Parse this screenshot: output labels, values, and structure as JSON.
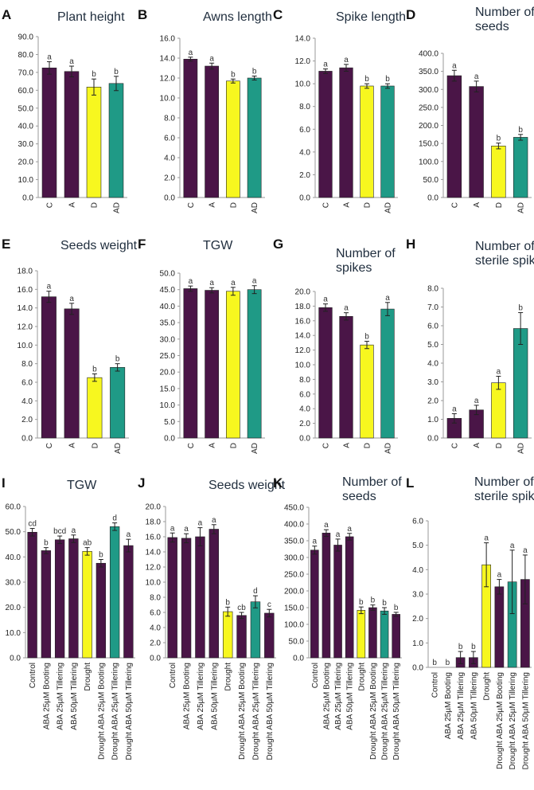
{
  "colors": {
    "control": "#4a1547",
    "drought": "#f7f71f",
    "ad": "#1f9a86"
  },
  "chart_data": [
    {
      "id": "A",
      "letter": "A",
      "title_lines": [
        "Plant height"
      ],
      "type": "bar",
      "categories": [
        "C",
        "A",
        "D",
        "AD"
      ],
      "values": [
        72.5,
        70.5,
        61.8,
        63.8
      ],
      "errors": [
        3.5,
        3.0,
        4.5,
        4.0
      ],
      "letters": [
        "a",
        "a",
        "b",
        "b"
      ],
      "colors": [
        "control",
        "control",
        "drought",
        "ad"
      ],
      "ylim": [
        0,
        90
      ],
      "yticks": [
        "0.0",
        "10.0",
        "20.0",
        "30.0",
        "40.0",
        "50.0",
        "60.0",
        "70.0",
        "80.0",
        "90.0"
      ]
    },
    {
      "id": "B",
      "letter": "B",
      "title_lines": [
        "Awns length"
      ],
      "type": "bar",
      "categories": [
        "C",
        "A",
        "D",
        "AD"
      ],
      "values": [
        13.9,
        13.2,
        11.7,
        12.0
      ],
      "errors": [
        0.2,
        0.3,
        0.2,
        0.2
      ],
      "letters": [
        "a",
        "a",
        "b",
        "b"
      ],
      "colors": [
        "control",
        "control",
        "drought",
        "ad"
      ],
      "ylim": [
        0,
        16
      ],
      "yticks": [
        "0.0",
        "2.0",
        "4.0",
        "6.0",
        "8.0",
        "10.0",
        "12.0",
        "14.0",
        "16.0"
      ]
    },
    {
      "id": "C",
      "letter": "C",
      "title_lines": [
        "Spike length"
      ],
      "type": "bar",
      "categories": [
        "C",
        "A",
        "D",
        "AD"
      ],
      "values": [
        11.1,
        11.4,
        9.8,
        9.8
      ],
      "errors": [
        0.2,
        0.3,
        0.2,
        0.2
      ],
      "letters": [
        "a",
        "a",
        "b",
        "b"
      ],
      "colors": [
        "control",
        "control",
        "drought",
        "ad"
      ],
      "ylim": [
        0,
        14
      ],
      "yticks": [
        "0.0",
        "2.0",
        "4.0",
        "6.0",
        "8.0",
        "10.0",
        "12.0",
        "14.0"
      ]
    },
    {
      "id": "D",
      "letter": "D",
      "title_lines": [
        "Number of",
        "seeds"
      ],
      "type": "bar",
      "categories": [
        "C",
        "A",
        "D",
        "AD"
      ],
      "values": [
        338,
        308,
        143,
        167
      ],
      "errors": [
        15,
        15,
        8,
        8
      ],
      "letters": [
        "a",
        "a",
        "b",
        "b"
      ],
      "colors": [
        "control",
        "control",
        "drought",
        "ad"
      ],
      "ylim": [
        0,
        400
      ],
      "yticks": [
        "0.0",
        "50.0",
        "100.0",
        "150.0",
        "200.0",
        "250.0",
        "300.0",
        "350.0",
        "400.0"
      ]
    },
    {
      "id": "E",
      "letter": "E",
      "title_lines": [
        "Seeds weight"
      ],
      "type": "bar",
      "categories": [
        "C",
        "A",
        "D",
        "AD"
      ],
      "values": [
        15.2,
        13.9,
        6.5,
        7.6
      ],
      "errors": [
        0.6,
        0.6,
        0.4,
        0.4
      ],
      "letters": [
        "a",
        "a",
        "b",
        "b"
      ],
      "colors": [
        "control",
        "control",
        "drought",
        "ad"
      ],
      "ylim": [
        0,
        18
      ],
      "yticks": [
        "0.0",
        "2.0",
        "4.0",
        "6.0",
        "8.0",
        "10.0",
        "12.0",
        "14.0",
        "16.0",
        "18.0"
      ]
    },
    {
      "id": "F",
      "letter": "F",
      "title_lines": [
        "TGW"
      ],
      "type": "bar",
      "categories": [
        "C",
        "A",
        "D",
        "AD"
      ],
      "values": [
        45.3,
        44.8,
        44.5,
        45.0
      ],
      "errors": [
        0.8,
        0.8,
        1.2,
        1.2
      ],
      "letters": [
        "a",
        "a",
        "a",
        "a"
      ],
      "colors": [
        "control",
        "control",
        "drought",
        "ad"
      ],
      "ylim": [
        0,
        50
      ],
      "yticks": [
        "0.0",
        "5.0",
        "10.0",
        "15.0",
        "20.0",
        "25.0",
        "30.0",
        "35.0",
        "40.0",
        "45.0",
        "50.0"
      ]
    },
    {
      "id": "G",
      "letter": "G",
      "title_lines": [
        "Number of",
        "spikes"
      ],
      "type": "bar",
      "categories": [
        "C",
        "A",
        "D",
        "AD"
      ],
      "values": [
        17.8,
        16.6,
        12.7,
        17.6
      ],
      "errors": [
        0.5,
        0.5,
        0.5,
        0.9
      ],
      "letters": [
        "a",
        "a",
        "b",
        "a"
      ],
      "colors": [
        "control",
        "control",
        "drought",
        "ad"
      ],
      "ylim": [
        0,
        20
      ],
      "yticks": [
        "0.0",
        "2.0",
        "4.0",
        "6.0",
        "8.0",
        "10.0",
        "12.0",
        "14.0",
        "16.0",
        "18.0",
        "20.0"
      ]
    },
    {
      "id": "H",
      "letter": "H",
      "title_lines": [
        "Number of",
        "sterile spikes"
      ],
      "type": "bar",
      "categories": [
        "C",
        "A",
        "D",
        "AD"
      ],
      "values": [
        1.05,
        1.5,
        2.95,
        5.85
      ],
      "errors": [
        0.25,
        0.25,
        0.35,
        0.85
      ],
      "letters": [
        "a",
        "a",
        "a",
        "b"
      ],
      "colors": [
        "control",
        "control",
        "drought",
        "ad"
      ],
      "ylim": [
        0,
        8
      ],
      "yticks": [
        "0.0",
        "1.0",
        "2.0",
        "3.0",
        "4.0",
        "5.0",
        "6.0",
        "7.0",
        "8.0"
      ]
    },
    {
      "id": "I",
      "letter": "I",
      "title_lines": [
        "TGW"
      ],
      "type": "bar",
      "categories": [
        "Control",
        "ABA 25µM Booting",
        "ABA 25µM Tillering",
        "ABA 50µM Tillering",
        "Drought",
        "Drought ABA 25µM Booting",
        "Drought ABA 25µM Tillering",
        "Drought ABA 50µM Tillering"
      ],
      "values": [
        49.8,
        42.5,
        46.8,
        47.2,
        42.2,
        37.5,
        52.0,
        44.5
      ],
      "errors": [
        1.5,
        1.2,
        1.5,
        1.5,
        1.5,
        1.5,
        1.5,
        2.5
      ],
      "letters": [
        "cd",
        "b",
        "bcd",
        "a",
        "ab",
        "b",
        "d",
        "a"
      ],
      "colors": [
        "control",
        "control",
        "control",
        "control",
        "drought",
        "control",
        "ad",
        "control"
      ],
      "ylim": [
        0,
        60
      ],
      "yticks": [
        "0.0",
        "10.0",
        "20.0",
        "30.0",
        "40.0",
        "50.0",
        "60.0"
      ]
    },
    {
      "id": "J",
      "letter": "J",
      "title_lines": [
        "Seeds weight"
      ],
      "type": "bar",
      "categories": [
        "Control",
        "ABA 25µM Booting",
        "ABA 25µM Tillering",
        "ABA 50µM Tillering",
        "Drought",
        "Drought ABA 25µM Booting",
        "Drought ABA 25µM Tillering",
        "Drought ABA 50µM Tillering"
      ],
      "values": [
        15.9,
        15.8,
        16.0,
        17.0,
        6.1,
        5.6,
        7.4,
        5.9
      ],
      "errors": [
        0.6,
        0.6,
        1.2,
        0.6,
        0.6,
        0.4,
        0.8,
        0.5
      ],
      "letters": [
        "a",
        "a",
        "a",
        "a",
        "b",
        "cb",
        "d",
        "c"
      ],
      "colors": [
        "control",
        "control",
        "control",
        "control",
        "drought",
        "control",
        "ad",
        "control"
      ],
      "ylim": [
        0,
        20
      ],
      "yticks": [
        "0.0",
        "2.0",
        "4.0",
        "6.0",
        "8.0",
        "10.0",
        "12.0",
        "14.0",
        "16.0",
        "18.0",
        "20.0"
      ]
    },
    {
      "id": "K",
      "letter": "K",
      "title_lines": [
        "Number of",
        "seeds"
      ],
      "type": "bar",
      "categories": [
        "Control",
        "ABA 25µM Booting",
        "ABA 25µM Tillering",
        "ABA 50µM Tillering",
        "Drought",
        "Drought ABA 25µM Booting",
        "Drought ABA 25µM Tillering",
        "Drought ABA 50µM Tillering"
      ],
      "values": [
        322,
        373,
        337,
        362,
        142,
        150,
        140,
        130
      ],
      "errors": [
        12,
        10,
        18,
        10,
        10,
        8,
        10,
        6
      ],
      "letters": [
        "a",
        "a",
        "a",
        "a",
        "b",
        "b",
        "b",
        "b"
      ],
      "colors": [
        "control",
        "control",
        "control",
        "control",
        "drought",
        "control",
        "ad",
        "control"
      ],
      "ylim": [
        0,
        450
      ],
      "yticks": [
        "0.0",
        "50.0",
        "100.0",
        "150.0",
        "200.0",
        "250.0",
        "300.0",
        "350.0",
        "400.0",
        "450.0"
      ]
    },
    {
      "id": "L",
      "letter": "L",
      "title_lines": [
        "Number of",
        "sterile spikes"
      ],
      "type": "bar",
      "categories": [
        "Control",
        "ABA 25µM Booting",
        "ABA 25µM Tillering",
        "ABA 50µM Tillering",
        "Drought",
        "Drought ABA 25µM Booting",
        "Drought ABA 25µM Tillering",
        "Drought ABA 50µM Tillering"
      ],
      "values": [
        0,
        0,
        0.4,
        0.4,
        4.2,
        3.3,
        3.5,
        3.6
      ],
      "errors": [
        0,
        0,
        0.25,
        0.25,
        0.9,
        0.3,
        1.3,
        1.0
      ],
      "letters": [
        "b",
        "b",
        "b",
        "b",
        "a",
        "a",
        "a",
        "a"
      ],
      "colors": [
        "control",
        "control",
        "control",
        "control",
        "drought",
        "control",
        "ad",
        "control"
      ],
      "ylim": [
        0,
        6
      ],
      "yticks": [
        "0.0",
        "1.0",
        "2.0",
        "3.0",
        "4.0",
        "5.0",
        "6.0"
      ]
    }
  ]
}
